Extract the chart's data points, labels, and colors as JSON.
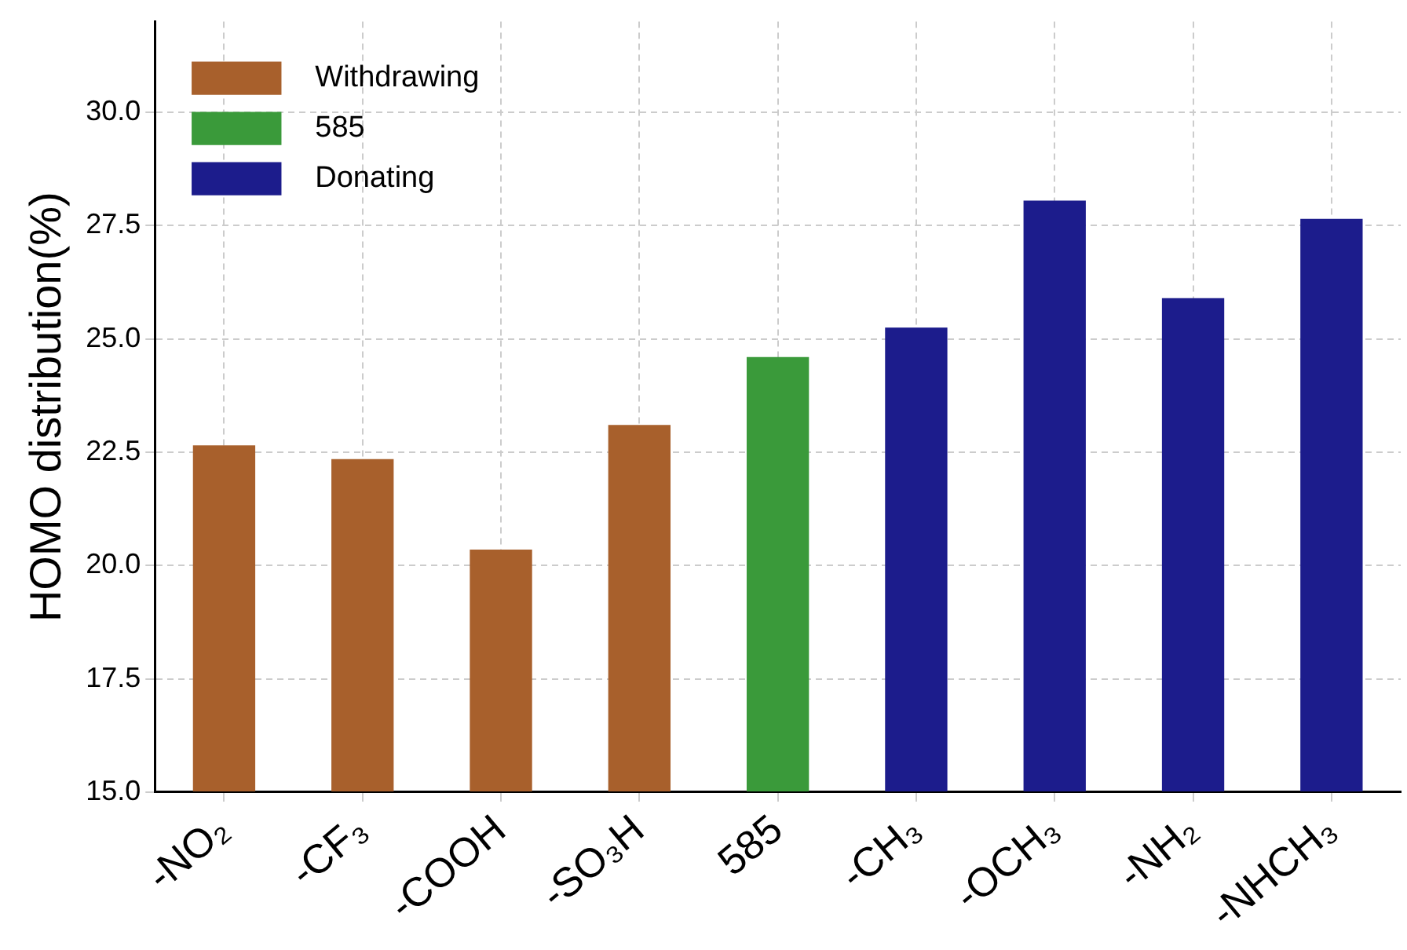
{
  "chart_data": {
    "type": "bar",
    "ylabel": "HOMO distribution(%)",
    "categories": [
      "-NO₂",
      "-CF₃",
      "-COOH",
      "-SO₃H",
      "585",
      "-CH₃",
      "-OCH₃",
      "-NH₂",
      "-NHCH₃"
    ],
    "series": [
      {
        "name": "Withdrawing",
        "color": "#a8602c",
        "values": [
          22.65,
          22.35,
          20.35,
          23.1,
          null,
          null,
          null,
          null,
          null
        ]
      },
      {
        "name": "585",
        "color": "#3a9a3a",
        "values": [
          null,
          null,
          null,
          null,
          24.6,
          null,
          null,
          null,
          null
        ]
      },
      {
        "name": "Donating",
        "color": "#1c1c8c",
        "values": [
          null,
          null,
          null,
          null,
          null,
          25.25,
          28.05,
          25.9,
          27.65
        ]
      }
    ],
    "ylim": [
      15,
      32
    ],
    "yticks": [
      {
        "value": 15,
        "label": "15.0"
      },
      17.5,
      {
        "value": 20,
        "label": "20.0"
      },
      22.5,
      {
        "value": 25,
        "label": "25.0"
      },
      27.5,
      {
        "value": 30,
        "label": "30.0"
      }
    ],
    "grid": true,
    "legend": "top left"
  }
}
